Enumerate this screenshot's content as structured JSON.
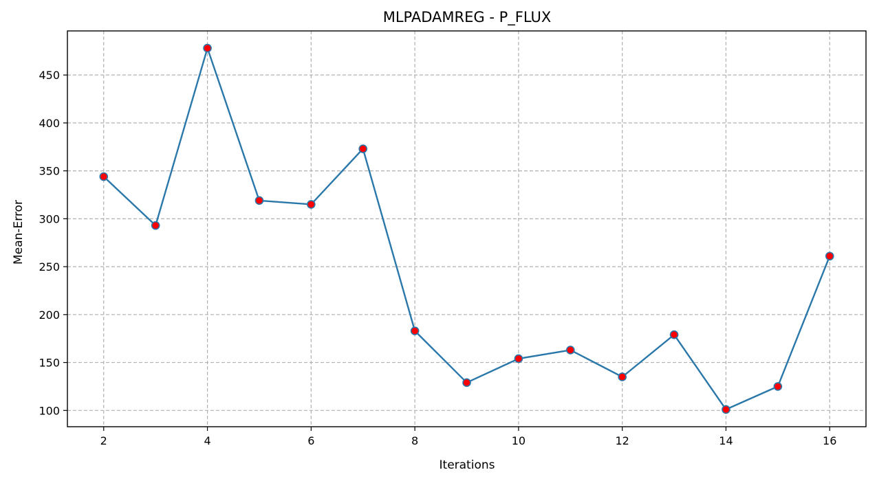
{
  "chart_data": {
    "type": "line",
    "title": "MLPADAMREG - P_FLUX",
    "xlabel": "Iterations",
    "ylabel": "Mean-Error",
    "x": [
      2,
      3,
      4,
      5,
      6,
      7,
      8,
      9,
      10,
      11,
      12,
      13,
      14,
      15,
      16
    ],
    "series": [
      {
        "values": [
          344,
          293,
          478,
          319,
          315,
          373,
          183,
          129,
          154,
          163,
          135,
          179,
          101,
          125,
          261
        ],
        "color": "#2a77aa",
        "marker_color": "#ff0000"
      }
    ],
    "xlim": [
      1.3,
      16.7
    ],
    "ylim": [
      83,
      496
    ],
    "xticks": [
      2,
      4,
      6,
      8,
      10,
      12,
      14,
      16
    ],
    "yticks": [
      100,
      150,
      200,
      250,
      300,
      350,
      400,
      450
    ],
    "grid": true,
    "legend": "none"
  }
}
